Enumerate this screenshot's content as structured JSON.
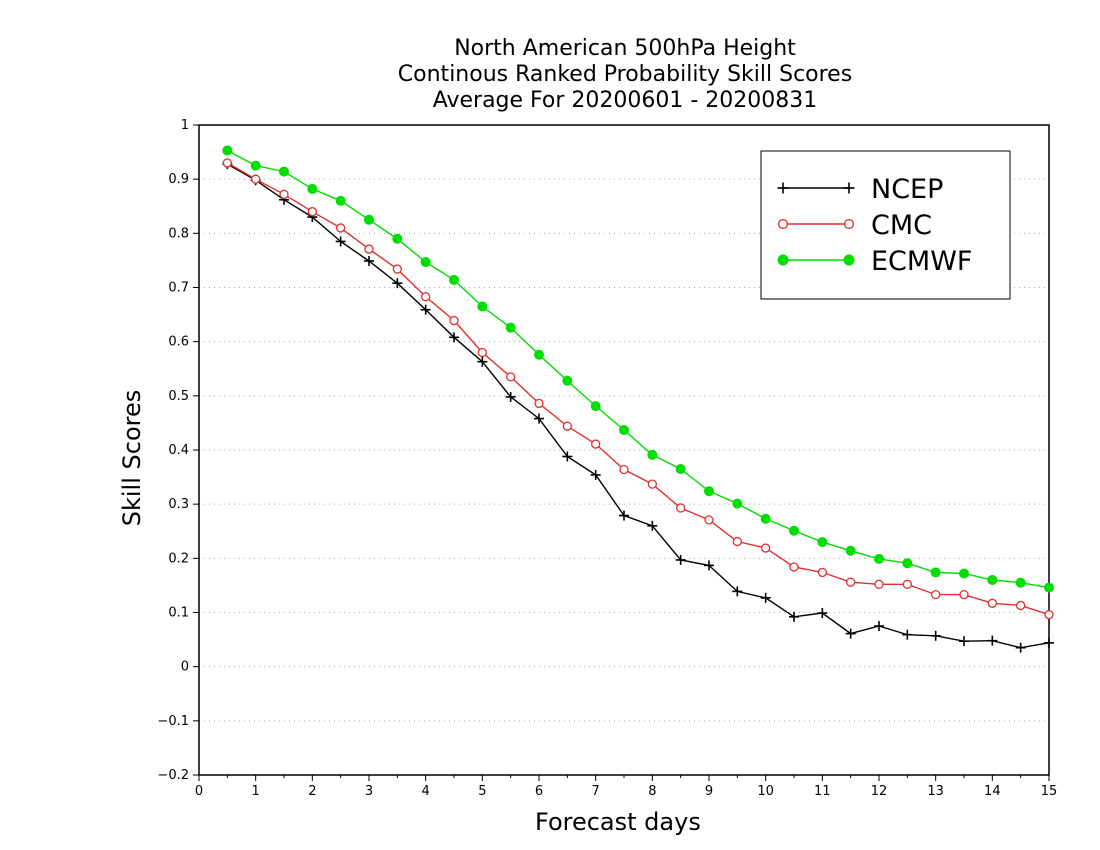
{
  "chart_data": {
    "type": "line",
    "title_lines": [
      "North American 500hPa Height",
      "Continous Ranked Probability Skill Scores",
      "Average For 20200601 - 20200831"
    ],
    "xlabel": "Forecast days",
    "ylabel": "Skill Scores",
    "xlim": [
      0,
      15
    ],
    "ylim": [
      -0.2,
      1
    ],
    "xticks": [
      "0",
      "1",
      "2",
      "3",
      "4",
      "5",
      "6",
      "7",
      "8",
      "9",
      "10",
      "11",
      "12",
      "13",
      "14",
      "15"
    ],
    "yticks": [
      "−0.2",
      "−0.1",
      "0",
      "0.1",
      "0.2",
      "0.3",
      "0.4",
      "0.5",
      "0.6",
      "0.7",
      "0.8",
      "0.9",
      "1"
    ],
    "ytick_values": [
      -0.2,
      -0.1,
      0,
      0.1,
      0.2,
      0.3,
      0.4,
      0.5,
      0.6,
      0.7,
      0.8,
      0.9,
      1
    ],
    "grid": "horizontal dotted",
    "legend_position": "top-right",
    "x": [
      0.5,
      1,
      1.5,
      2,
      2.5,
      3,
      3.5,
      4,
      4.5,
      5,
      5.5,
      6,
      6.5,
      7,
      7.5,
      8,
      8.5,
      9,
      9.5,
      10,
      10.5,
      11,
      11.5,
      12,
      12.5,
      13,
      13.5,
      14,
      14.5,
      15
    ],
    "series": [
      {
        "name": "NCEP",
        "color": "#000000",
        "marker": "plus",
        "values": [
          0.928,
          0.898,
          0.862,
          0.83,
          0.785,
          0.749,
          0.708,
          0.659,
          0.608,
          0.563,
          0.498,
          0.458,
          0.388,
          0.354,
          0.279,
          0.26,
          0.197,
          0.187,
          0.139,
          0.127,
          0.092,
          0.099,
          0.061,
          0.075,
          0.059,
          0.057,
          0.047,
          0.048,
          0.035,
          0.044
        ]
      },
      {
        "name": "CMC",
        "color": "#e03030",
        "marker": "open-circle",
        "values": [
          0.93,
          0.9,
          0.872,
          0.84,
          0.81,
          0.771,
          0.734,
          0.683,
          0.639,
          0.58,
          0.535,
          0.486,
          0.444,
          0.411,
          0.364,
          0.337,
          0.293,
          0.271,
          0.231,
          0.219,
          0.184,
          0.174,
          0.156,
          0.152,
          0.152,
          0.133,
          0.133,
          0.117,
          0.113,
          0.096
        ]
      },
      {
        "name": "ECMWF",
        "color": "#00dd00",
        "marker": "filled-circle",
        "values": [
          0.953,
          0.925,
          0.914,
          0.882,
          0.86,
          0.825,
          0.79,
          0.747,
          0.714,
          0.665,
          0.626,
          0.576,
          0.528,
          0.481,
          0.437,
          0.391,
          0.365,
          0.324,
          0.301,
          0.273,
          0.251,
          0.23,
          0.214,
          0.199,
          0.191,
          0.174,
          0.172,
          0.16,
          0.155,
          0.146
        ]
      }
    ]
  }
}
